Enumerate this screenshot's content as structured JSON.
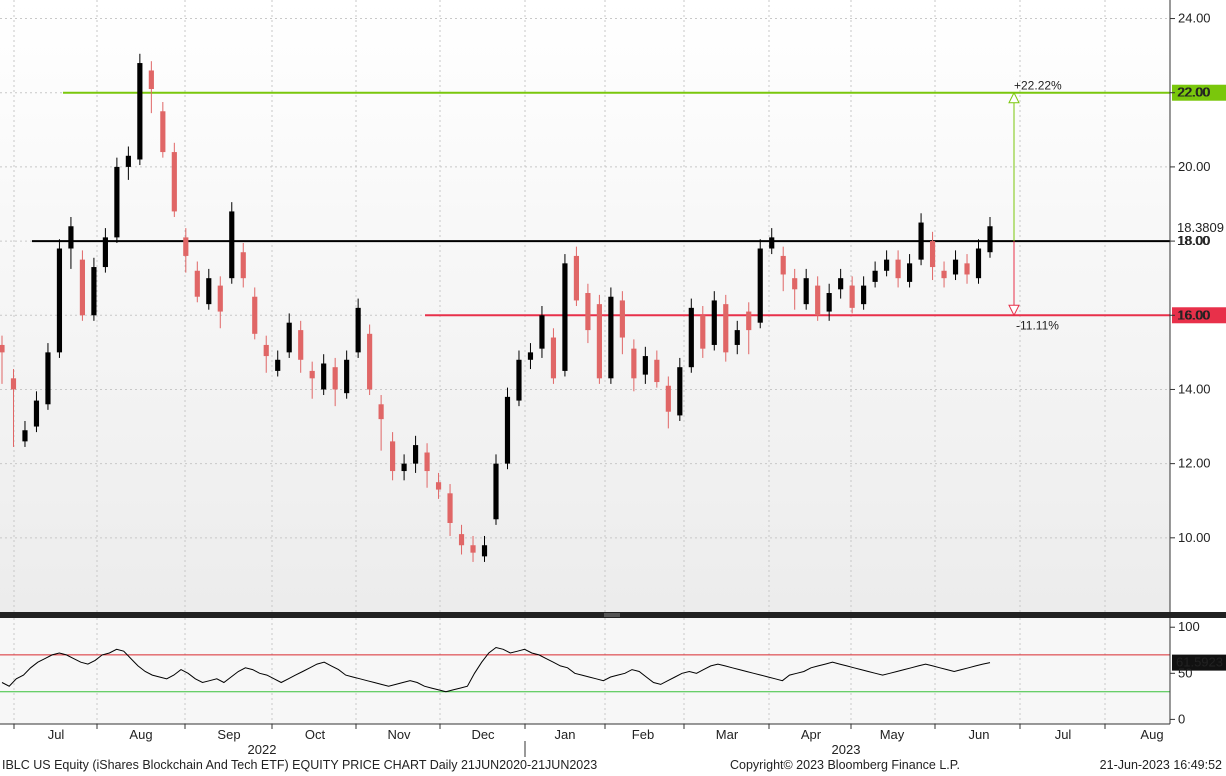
{
  "footer": {
    "left": "IBLC US Equity (iShares Blockchain And Tech ETF) EQUITY PRICE CHART  Daily 21JUN2020-21JUN2023",
    "copyright": "Copyright© 2023 Bloomberg Finance L.P.",
    "timestamp": "21-Jun-2023 16:49:52"
  },
  "colors": {
    "up_candle": "#000000",
    "down_candle": "#e06666",
    "resistance": "#7ac70c",
    "current": "#000000",
    "support": "#e8304a",
    "rsi_line": "#000000",
    "rsi_upper": "#d9292f",
    "rsi_lower": "#39c13a",
    "grid": "#c8c8c8"
  },
  "chart_data": [
    {
      "type": "candlestick",
      "ylim": [
        8,
        24.5
      ],
      "y_ticks": [
        10,
        12,
        14,
        16,
        18,
        20,
        22,
        24
      ],
      "y_tick_labels": [
        "10.00",
        "12.00",
        "14.00",
        "16.00",
        "18.00",
        "20.00",
        "22.00",
        "24.00"
      ],
      "x_month_labels": [
        "Jul",
        "Aug",
        "Sep",
        "Oct",
        "Nov",
        "Dec",
        "Jan",
        "Feb",
        "Mar",
        "Apr",
        "May",
        "Jun",
        "Jul",
        "Aug"
      ],
      "year_labels": [
        "2022",
        "2023"
      ],
      "last_price_label": "18.3809",
      "levels": [
        {
          "name": "resistance",
          "value": 22.0,
          "label": "22.00",
          "pct_label": "+22.22%"
        },
        {
          "name": "current",
          "value": 18.0,
          "label": "18.00"
        },
        {
          "name": "support",
          "value": 16.0,
          "label": "16.00",
          "pct_label": "-11.11%"
        }
      ],
      "series": [
        {
          "values": [
            [
              15.2,
              15.0,
              14.3
            ],
            [
              14.3,
              14.0,
              12.6
            ],
            [
              12.6,
              12.9,
              12.6
            ],
            [
              13.0,
              13.7,
              13.0
            ],
            [
              13.6,
              15.0,
              13.6
            ],
            [
              15.0,
              17.8,
              15.0
            ],
            [
              17.8,
              18.4,
              17.4
            ],
            [
              17.5,
              16.0,
              16.0
            ],
            [
              16.0,
              17.3,
              16.0
            ],
            [
              17.3,
              18.1,
              17.3
            ],
            [
              18.1,
              20.0,
              18.1
            ],
            [
              20.0,
              20.3,
              19.8
            ],
            [
              20.2,
              22.8,
              20.2
            ],
            [
              22.6,
              22.1,
              21.6
            ],
            [
              21.5,
              20.4,
              20.4
            ],
            [
              20.4,
              18.8,
              18.8
            ],
            [
              18.1,
              17.6,
              17.3
            ],
            [
              17.2,
              16.5,
              16.5
            ],
            [
              16.3,
              17.0,
              16.3
            ],
            [
              16.8,
              16.1,
              15.8
            ],
            [
              17.0,
              18.8,
              17.0
            ],
            [
              17.7,
              17.0,
              16.9
            ],
            [
              16.5,
              15.5,
              15.5
            ],
            [
              15.2,
              14.9,
              14.6
            ],
            [
              14.5,
              14.8,
              14.5
            ],
            [
              15.0,
              15.8,
              15.0
            ],
            [
              15.6,
              14.8,
              14.6
            ],
            [
              14.5,
              14.3,
              13.9
            ],
            [
              14.0,
              14.7,
              14.0
            ],
            [
              14.6,
              14.0,
              13.7
            ],
            [
              13.9,
              14.8,
              13.9
            ],
            [
              15.0,
              16.2,
              15.0
            ],
            [
              15.5,
              14.0,
              14.0
            ],
            [
              13.6,
              13.2,
              12.5
            ],
            [
              12.6,
              11.8,
              11.7
            ],
            [
              11.8,
              12.0,
              11.7
            ],
            [
              12.0,
              12.5,
              11.9
            ],
            [
              12.3,
              11.8,
              11.5
            ],
            [
              11.5,
              11.3,
              11.2
            ],
            [
              11.2,
              10.4,
              10.2
            ],
            [
              10.1,
              9.8,
              9.7
            ],
            [
              9.8,
              9.6,
              9.5
            ],
            [
              9.5,
              9.8,
              9.5
            ],
            [
              10.5,
              12.0,
              10.5
            ],
            [
              12.0,
              13.8,
              12.0
            ],
            [
              13.7,
              14.8,
              13.7
            ],
            [
              14.8,
              15.0,
              14.7
            ],
            [
              15.1,
              16.0,
              15.0
            ],
            [
              15.4,
              14.3,
              14.3
            ],
            [
              14.5,
              17.4,
              14.5
            ],
            [
              17.6,
              16.4,
              16.4
            ],
            [
              16.6,
              15.6,
              15.4
            ],
            [
              16.3,
              14.3,
              14.3
            ],
            [
              14.3,
              16.5,
              14.3
            ],
            [
              16.4,
              15.4,
              15.1
            ],
            [
              15.1,
              14.3,
              14.1
            ],
            [
              14.4,
              14.9,
              14.3
            ],
            [
              14.8,
              14.2,
              14.2
            ],
            [
              14.1,
              13.4,
              13.1
            ],
            [
              13.3,
              14.6,
              13.3
            ],
            [
              14.6,
              16.2,
              14.6
            ],
            [
              16.0,
              15.1,
              15.0
            ],
            [
              15.2,
              16.4,
              15.2
            ],
            [
              16.3,
              15.0,
              14.9
            ],
            [
              15.2,
              15.6,
              15.1
            ],
            [
              16.1,
              15.6,
              15.1
            ],
            [
              15.8,
              17.8,
              15.8
            ],
            [
              17.8,
              18.1,
              17.8
            ],
            [
              17.6,
              17.1,
              16.8
            ],
            [
              17.0,
              16.7,
              16.3
            ],
            [
              16.3,
              17.0,
              16.3
            ],
            [
              16.8,
              16.0,
              16.0
            ],
            [
              16.1,
              16.6,
              16.0
            ],
            [
              16.7,
              17.0,
              16.6
            ],
            [
              16.8,
              16.2,
              16.2
            ],
            [
              16.3,
              16.8,
              16.3
            ],
            [
              16.9,
              17.2,
              16.9
            ],
            [
              17.2,
              17.5,
              17.2
            ],
            [
              17.5,
              17.0,
              16.9
            ],
            [
              16.9,
              17.4,
              16.9
            ],
            [
              17.5,
              18.5,
              17.5
            ],
            [
              18.0,
              17.3,
              17.1
            ],
            [
              17.2,
              17.0,
              16.9
            ],
            [
              17.1,
              17.5,
              17.1
            ],
            [
              17.4,
              17.1,
              17.0
            ],
            [
              17.0,
              17.8,
              17.0
            ],
            [
              17.7,
              18.4,
              17.7
            ]
          ]
        }
      ]
    },
    {
      "type": "line",
      "ylim": [
        -5,
        110
      ],
      "y_ticks": [
        0,
        50,
        100
      ],
      "y_tick_labels": [
        "0",
        "50",
        "100"
      ],
      "last_value_label": "61.5923",
      "levels": [
        70,
        30
      ],
      "series": [
        {
          "values": [
            40,
            36,
            44,
            48,
            56,
            62,
            66,
            70,
            72,
            70,
            66,
            62,
            60,
            64,
            70,
            72,
            76,
            74,
            66,
            58,
            52,
            48,
            46,
            44,
            48,
            54,
            50,
            44,
            40,
            42,
            44,
            40,
            46,
            52,
            56,
            54,
            50,
            48,
            44,
            40,
            44,
            48,
            52,
            56,
            60,
            62,
            58,
            54,
            48,
            46,
            44,
            42,
            40,
            38,
            36,
            38,
            40,
            42,
            40,
            36,
            34,
            32,
            30,
            32,
            34,
            36,
            50,
            62,
            72,
            78,
            76,
            72,
            74,
            76,
            72,
            70,
            66,
            62,
            58,
            56,
            50,
            48,
            46,
            44,
            42,
            46,
            48,
            50,
            54,
            52,
            46,
            40,
            38,
            42,
            46,
            50,
            52,
            50,
            54,
            58,
            60,
            58,
            56,
            54,
            52,
            50,
            48,
            46,
            44,
            42,
            48,
            50,
            52,
            56,
            58,
            60,
            62,
            60,
            58,
            56,
            54,
            52,
            50,
            48,
            50,
            52,
            54,
            56,
            58,
            60,
            58,
            56,
            54,
            52,
            54,
            56,
            58,
            60,
            61.6
          ]
        }
      ]
    }
  ]
}
